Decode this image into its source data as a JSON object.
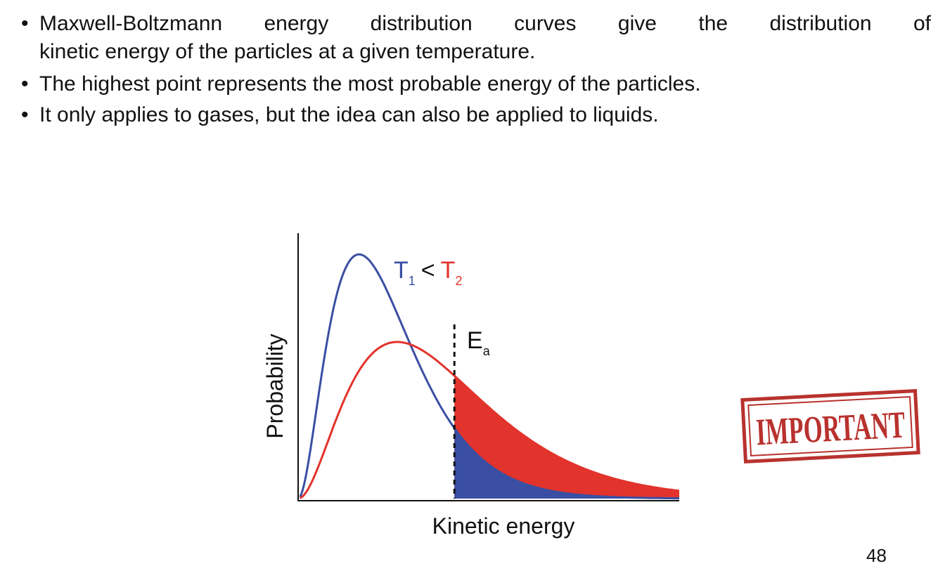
{
  "bullets": [
    {
      "line1": "Maxwell-Boltzmann energy distribution curves give the distribution of",
      "line2": "kinetic energy of the particles at a given temperature."
    },
    {
      "line1": "The highest point represents the most probable energy of the particles."
    },
    {
      "line1": "It only applies to gases, but the idea can also be applied to liquids."
    }
  ],
  "bullet_symbol": "•",
  "chart_data": {
    "type": "line",
    "xlabel": "Kinetic energy",
    "ylabel": "Probability",
    "xlim": [
      0,
      10
    ],
    "ylim": [
      0,
      1
    ],
    "grid": false,
    "series": [
      {
        "name_parts": [
          "T",
          "1"
        ],
        "color": "#3a4fa3",
        "peak_x": 1.6,
        "peak_y": 0.92
      },
      {
        "name_parts": [
          "T",
          "2"
        ],
        "color": "#e2332c",
        "peak_x": 2.6,
        "peak_y": 0.59
      }
    ],
    "relation": "<",
    "threshold": {
      "x": 4.1,
      "label_main": "E",
      "label_sub": "a"
    },
    "shaded_region": "x > Ea under both curves"
  },
  "stamp": {
    "text": "IMPORTANT",
    "color": "#b8322e"
  },
  "page_number": "48"
}
